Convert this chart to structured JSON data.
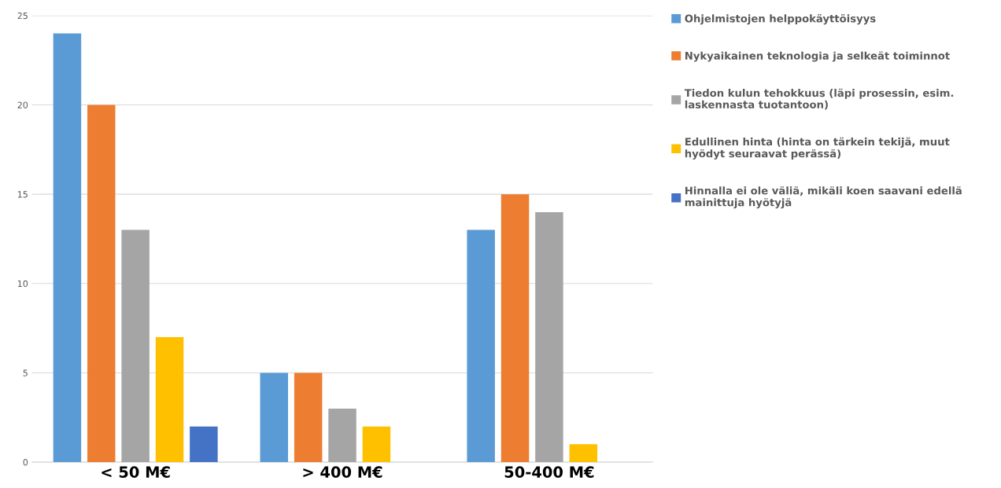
{
  "chart_data": {
    "type": "bar",
    "categories": [
      "< 50 M€",
      "> 400 M€",
      "50-400 M€"
    ],
    "series": [
      {
        "name": "Ohjelmistojen helppokäyttöisyys",
        "color": "#5b9bd5",
        "values": [
          24,
          5,
          13
        ]
      },
      {
        "name": "Nykyaikainen teknologia ja selkeät toiminnot",
        "color": "#ed7d31",
        "values": [
          20,
          5,
          15
        ]
      },
      {
        "name": "Tiedon kulun tehokkuus (läpi prosessin, esim.\nlaskennasta tuotantoon)",
        "color": "#a5a5a5",
        "values": [
          13,
          3,
          14
        ]
      },
      {
        "name": "Edullinen hinta (hinta on tärkein tekijä, muut\nhyödyt seuraavat perässä)",
        "color": "#ffc000",
        "values": [
          7,
          2,
          1
        ]
      },
      {
        "name": "Hinnalla ei ole väliä, mikäli koen saavani edellä\nmainittuja hyötyjä",
        "color": "#4472c4",
        "values": [
          2,
          0,
          0
        ]
      }
    ],
    "ylim": [
      0,
      25
    ],
    "yticks": [
      0,
      5,
      10,
      15,
      20,
      25
    ],
    "grid": "y",
    "legend": "right"
  }
}
